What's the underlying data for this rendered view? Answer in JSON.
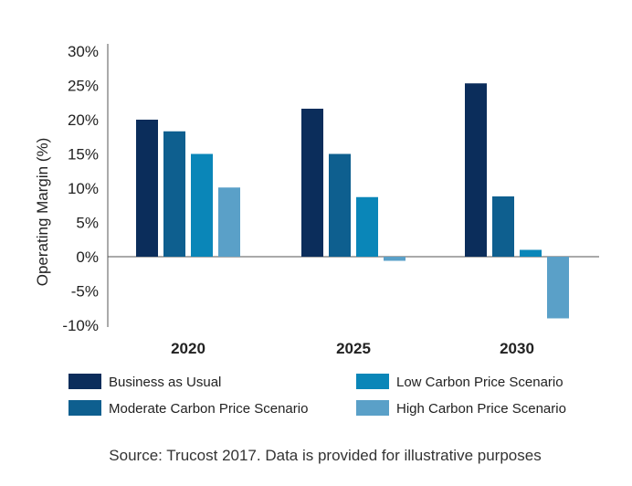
{
  "chart_data": {
    "type": "bar",
    "categories": [
      "2020",
      "2025",
      "2030"
    ],
    "series": [
      {
        "name": "Business as Usual",
        "color": "#0b2d5b",
        "values": [
          20,
          21.6,
          25.3
        ]
      },
      {
        "name": "Moderate Carbon Price Scenario",
        "color": "#0e5f8f",
        "values": [
          18.3,
          15,
          8.8
        ]
      },
      {
        "name": "Low Carbon Price Scenario",
        "color": "#0a86b8",
        "values": [
          15,
          8.7,
          1
        ]
      },
      {
        "name": "High Carbon Price Scenario",
        "color": "#5aa0c8",
        "values": [
          10.1,
          -0.6,
          -9
        ]
      }
    ],
    "ylabel": "Operating Margin (%)",
    "xlabel": "",
    "title": "",
    "ylim": [
      -10,
      30
    ],
    "yticks": [
      30,
      25,
      20,
      15,
      10,
      5,
      0,
      -5,
      -10
    ],
    "ytick_labels": [
      "30%",
      "25%",
      "20%",
      "15%",
      "10%",
      "5%",
      "0%",
      "-5%",
      "-10%"
    ],
    "grid": false,
    "legend_position": "bottom"
  },
  "source_note": "Source: Trucost 2017. Data is provided for illustrative purposes"
}
